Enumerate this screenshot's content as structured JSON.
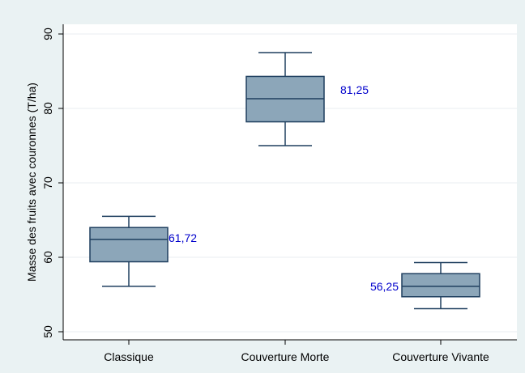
{
  "chart_data": {
    "type": "box",
    "ylabel": "Masse des fruits avec couronnes (T/ha)",
    "xlabel": "",
    "ylim": [
      50,
      90
    ],
    "yticks": [
      50,
      60,
      70,
      80,
      90
    ],
    "grid": true,
    "colors": {
      "box_fill": "#8ca6b9",
      "box_stroke": "#1f3f5f",
      "annotation": "#0000cc",
      "background": "#eaf2f3",
      "plot_background": "#ffffff",
      "grid": "#e8eef0"
    },
    "categories": [
      "Classique",
      "Couverture Morte",
      "Couverture Vivante"
    ],
    "boxes": [
      {
        "category": "Classique",
        "min": 56.1,
        "q1": 59.4,
        "median": 62.4,
        "q3": 64.0,
        "max": 65.5,
        "annotation": "61,72",
        "annotation_side": "right"
      },
      {
        "category": "Couverture Morte",
        "min": 75.0,
        "q1": 78.2,
        "median": 81.3,
        "q3": 84.3,
        "max": 87.5,
        "annotation": "81,25",
        "annotation_side": "right"
      },
      {
        "category": "Couverture Vivante",
        "min": 53.1,
        "q1": 54.7,
        "median": 56.1,
        "q3": 57.8,
        "max": 59.3,
        "annotation": "56,25",
        "annotation_side": "left"
      }
    ]
  }
}
